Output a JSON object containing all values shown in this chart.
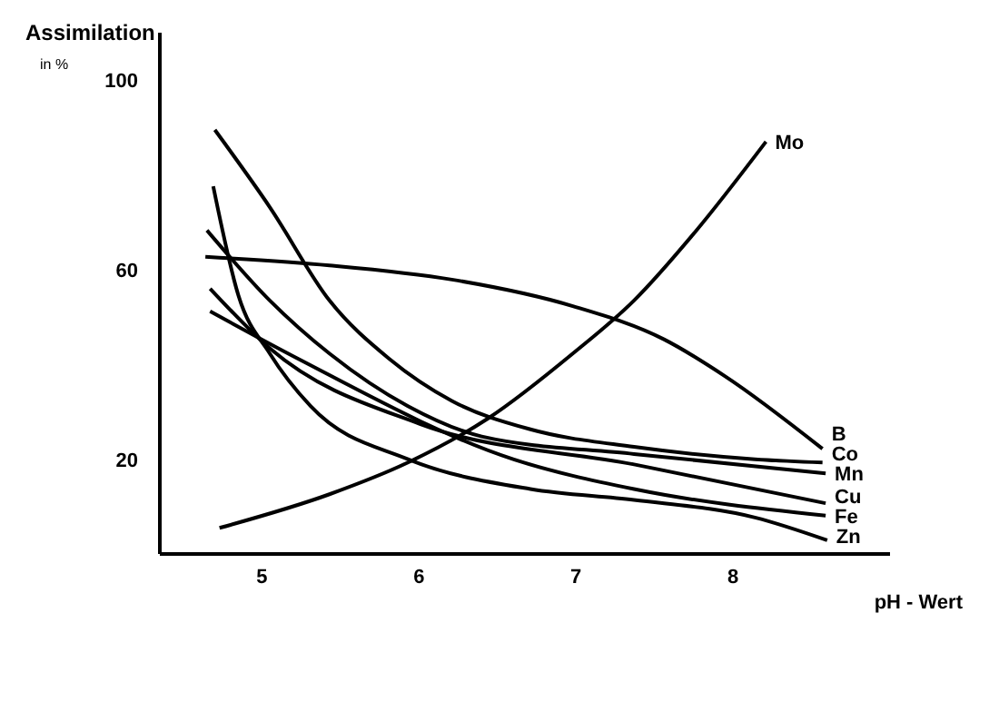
{
  "chart_data": {
    "type": "line",
    "ylabel": "Assimilation",
    "xlabel": "pH - Wert",
    "annotations": [
      "in %"
    ],
    "xlim": [
      4.35,
      9.0
    ],
    "ylim": [
      0,
      110
    ],
    "xticks": [
      5,
      6,
      7,
      8
    ],
    "yticks": [
      20,
      60,
      100
    ],
    "grid": false,
    "marker": "none",
    "line_style": "solid",
    "series": [
      {
        "name": "Mo",
        "color": "#000000",
        "x": [
          4.73,
          5.43,
          5.93,
          6.44,
          6.98,
          7.37,
          7.76,
          8.21
        ],
        "values": [
          5.5,
          12.6,
          19.3,
          28.6,
          42.3,
          53.5,
          68,
          87
        ]
      },
      {
        "name": "B",
        "color": "#000000",
        "x": [
          4.64,
          5.43,
          6.21,
          6.98,
          7.56,
          7.95,
          8.57
        ],
        "values": [
          62.7,
          60.9,
          57.9,
          52.3,
          45.3,
          37.5,
          22.2
        ]
      },
      {
        "name": "Co",
        "color": "#000000",
        "x": [
          4.7,
          5.05,
          5.43,
          5.81,
          6.21,
          6.71,
          7.37,
          8.14,
          8.57
        ],
        "values": [
          89.5,
          73.2,
          53.5,
          41.2,
          32.3,
          26.3,
          22.6,
          20,
          19.3
        ]
      },
      {
        "name": "Mn",
        "color": "#000000",
        "x": [
          4.65,
          5.05,
          5.43,
          5.93,
          6.4,
          7.37,
          8.59
        ],
        "values": [
          68.3,
          53.5,
          42.3,
          31.2,
          24.8,
          21.1,
          17
        ]
      },
      {
        "name": "Cu",
        "color": "#000000",
        "x": [
          4.67,
          5.05,
          6.01,
          7.37,
          8.59
        ],
        "values": [
          56,
          43.4,
          27.4,
          18.9,
          10.7
        ]
      },
      {
        "name": "Fe",
        "color": "#000000",
        "x": [
          4.67,
          5.23,
          6.6,
          7.37,
          8.59
        ],
        "values": [
          51.2,
          41.2,
          20,
          13.7,
          8.1
        ]
      },
      {
        "name": "Zn",
        "color": "#000000",
        "x": [
          4.69,
          4.85,
          5.05,
          5.31,
          5.93,
          6.71,
          7.37,
          8.14,
          8.6
        ],
        "values": [
          77.6,
          54.6,
          42.3,
          31.2,
          20,
          13.7,
          11.4,
          7.7,
          2.9
        ]
      }
    ]
  }
}
